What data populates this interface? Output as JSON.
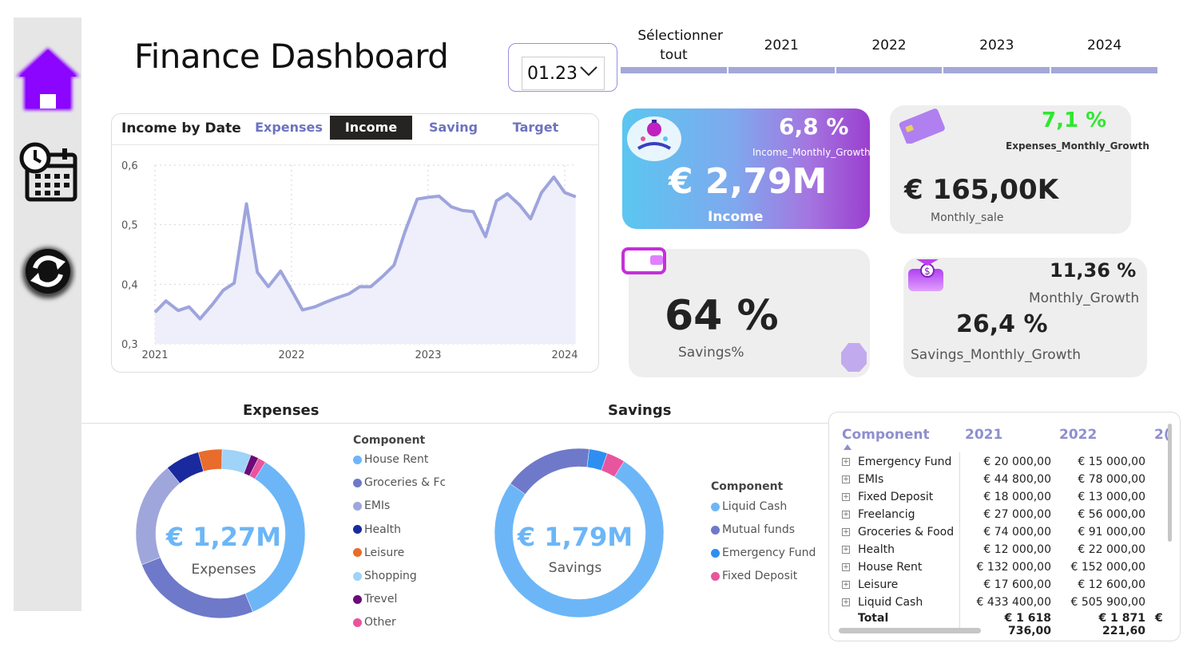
{
  "title": "Finance Dashboard",
  "date_dropdown": {
    "value": "01.23"
  },
  "year_slicer": [
    {
      "label": "Sélectionner tout"
    },
    {
      "label": "2021"
    },
    {
      "label": "2022"
    },
    {
      "label": "2023"
    },
    {
      "label": "2024"
    }
  ],
  "line_chart": {
    "title": "Income by Date",
    "tabs": [
      "Expenses",
      "Income",
      "Saving",
      "Target"
    ],
    "active_tab": "Income"
  },
  "kpi": {
    "income": {
      "growth": "6,8 %",
      "growth_label": "Income_Monthly_Growth",
      "value": "€ 2,79M",
      "label": "Income"
    },
    "expenses": {
      "growth": "7,1 %",
      "growth_label": "Expenses_Monthly_Growth",
      "value": "€ 165,00K",
      "label": "Monthly_sale"
    },
    "savings_pct": {
      "value": "64 %",
      "label": "Savings%"
    },
    "savings_growth": {
      "monthly_growth": "11,36 %",
      "monthly_growth_label": "Monthly_Growth",
      "value": "26,4 %",
      "label": "Savings_Monthly_Growth"
    }
  },
  "expenses_donut": {
    "title": "Expenses",
    "center_value": "€ 1,27M",
    "center_label": "Expenses",
    "legend_title": "Component",
    "legend": [
      {
        "name": "House Rent",
        "color": "#6cb6f7"
      },
      {
        "name": "Groceries & Fc",
        "color": "#6f79c9"
      },
      {
        "name": "EMIs",
        "color": "#9fa6db"
      },
      {
        "name": "Health",
        "color": "#1a2a9e"
      },
      {
        "name": "Leisure",
        "color": "#e86c2c"
      },
      {
        "name": "Shopping",
        "color": "#9fd3f7"
      },
      {
        "name": "Trevel",
        "color": "#6b0a7a"
      },
      {
        "name": "Other",
        "color": "#e8559e"
      }
    ]
  },
  "savings_donut": {
    "title": "Savings",
    "center_value": "€ 1,79M",
    "center_label": "Savings",
    "legend_title": "Component",
    "legend": [
      {
        "name": "Liquid Cash",
        "color": "#6cb6f7"
      },
      {
        "name": "Mutual funds",
        "color": "#6f79c9"
      },
      {
        "name": "Emergency Fund",
        "color": "#2e8ff0"
      },
      {
        "name": "Fixed Deposit",
        "color": "#e8559e"
      }
    ]
  },
  "matrix": {
    "headers": [
      "Component",
      "2021",
      "2022",
      "2("
    ],
    "rows": [
      {
        "name": "Emergency Fund",
        "y2021": "€ 20 000,00",
        "y2022": "€ 15 000,00"
      },
      {
        "name": "EMIs",
        "y2021": "€ 44 800,00",
        "y2022": "€ 78 000,00"
      },
      {
        "name": "Fixed Deposit",
        "y2021": "€ 18 000,00",
        "y2022": "€ 13 000,00"
      },
      {
        "name": "Freelancig",
        "y2021": "€ 27 000,00",
        "y2022": "€ 56 000,00"
      },
      {
        "name": "Groceries & Food",
        "y2021": "€ 74 000,00",
        "y2022": "€ 91 000,00"
      },
      {
        "name": "Health",
        "y2021": "€ 12 000,00",
        "y2022": "€ 22 000,00"
      },
      {
        "name": "House Rent",
        "y2021": "€ 132 000,00",
        "y2022": "€ 152 000,00"
      },
      {
        "name": "Leisure",
        "y2021": "€ 17 600,00",
        "y2022": "€ 12 600,00"
      },
      {
        "name": "Liquid Cash",
        "y2021": "€ 433 400,00",
        "y2022": "€ 505 900,00"
      }
    ],
    "total": {
      "name": "Total",
      "y2021": "€ 1 618 736,00",
      "y2022": "€ 1 871 221,60",
      "y2023": "€"
    }
  },
  "chart_data": [
    {
      "type": "area",
      "xlabel": "",
      "ylabel": "",
      "ylim": [
        0.3,
        0.6
      ],
      "yticks": [
        "0,6",
        "0,5",
        "0,4",
        "0,3"
      ],
      "xticks": [
        "2021",
        "2022",
        "2023",
        "2024"
      ],
      "x": [
        2021.0,
        2021.08,
        2021.17,
        2021.25,
        2021.33,
        2021.42,
        2021.5,
        2021.58,
        2021.67,
        2021.75,
        2021.83,
        2021.92,
        2022.0,
        2022.08,
        2022.17,
        2022.25,
        2022.33,
        2022.42,
        2022.5,
        2022.58,
        2022.67,
        2022.75,
        2022.83,
        2022.92,
        2023.0,
        2023.08,
        2023.17,
        2023.25,
        2023.33,
        2023.42,
        2023.5,
        2023.58,
        2023.67,
        2023.75,
        2023.83,
        2023.92,
        2024.0,
        2024.08
      ],
      "series": [
        {
          "values": [
            0.353,
            0.372,
            0.356,
            0.362,
            0.342,
            0.366,
            0.39,
            0.402,
            0.535,
            0.42,
            0.396,
            0.422,
            0.39,
            0.357,
            0.362,
            0.37,
            0.377,
            0.384,
            0.396,
            0.396,
            0.414,
            0.432,
            0.488,
            0.543,
            0.546,
            0.548,
            0.53,
            0.524,
            0.522,
            0.48,
            0.54,
            0.552,
            0.533,
            0.51,
            0.554,
            0.58,
            0.554,
            0.547
          ]
        }
      ],
      "color": "#9ea4dc",
      "grid": true
    },
    {
      "type": "pie",
      "title": "Expenses",
      "labels": [
        "House Rent",
        "Groceries & Fc",
        "EMIs",
        "Health",
        "Leisure",
        "Shopping",
        "Trevel",
        "Other"
      ],
      "values": [
        34.5,
        25,
        20,
        6.5,
        4.5,
        5.5,
        1.5,
        1.5
      ]
    },
    {
      "type": "pie",
      "title": "Savings",
      "labels": [
        "Liquid Cash",
        "Mutual funds",
        "Emergency Fund",
        "Fixed Deposit"
      ],
      "values": [
        76,
        17,
        3.5,
        3.5
      ]
    }
  ]
}
